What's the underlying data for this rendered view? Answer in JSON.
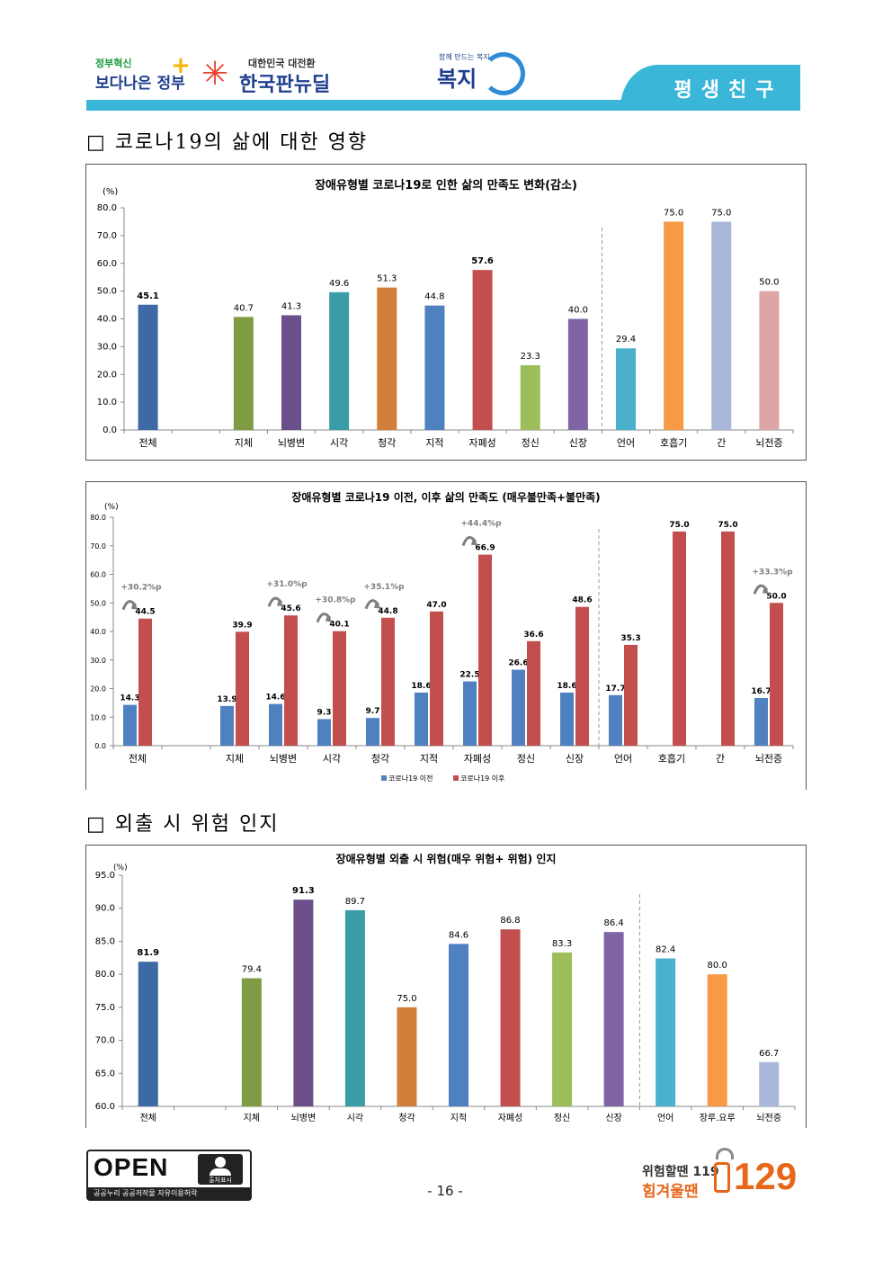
{
  "header": {
    "gov_logo_small": "정부혁신",
    "gov_logo_big": "보다나은 정부",
    "newdeal_small": "대한민국 대전환",
    "newdeal_big": "한국판뉴딜",
    "bokji_small": "함께 만드는 복지",
    "bokji_big": "복지",
    "tab_label": "평생친구"
  },
  "sections": [
    {
      "title": "□ 코로나19의 삶에 대한 영향"
    },
    {
      "title": "□ 외출 시 위험 인지"
    }
  ],
  "chart_data": [
    {
      "type": "bar",
      "title": "장애유형별 코로나19로 인한 삶의 만족도 변화(감소)",
      "ylabel": "(%)",
      "ylim": [
        0,
        80
      ],
      "ytick_step": 10,
      "yticks": [
        "0.0",
        "10.0",
        "20.0",
        "30.0",
        "40.0",
        "50.0",
        "60.0",
        "70.0",
        "80.0"
      ],
      "categories": [
        "전체",
        "",
        "지체",
        "뇌병변",
        "시각",
        "청각",
        "지적",
        "자폐성",
        "정신",
        "신장",
        "언어",
        "호흡기",
        "간",
        "뇌전증"
      ],
      "values": [
        45.1,
        null,
        40.7,
        41.3,
        49.6,
        51.3,
        44.8,
        57.6,
        23.3,
        40.0,
        29.4,
        75.0,
        75.0,
        50.0
      ],
      "labels": [
        "45.1",
        "",
        "40.7",
        "41.3",
        "49.6",
        "51.3",
        "44.8",
        "57.6",
        "23.3",
        "40.0",
        "29.4",
        "75.0",
        "75.0",
        "50.0"
      ],
      "colors": [
        "#3d6aa4",
        "",
        "#7f9c44",
        "#6a4f8a",
        "#3a9ca9",
        "#d07e38",
        "#4f80c0",
        "#c24e4d",
        "#9dbd5a",
        "#8065a5",
        "#4ab0cb",
        "#f79a45",
        "#a9b8d9",
        "#dda5a6"
      ],
      "bold_labels": [
        0,
        7
      ],
      "divider_after": 9,
      "grid": false
    },
    {
      "type": "bar",
      "title": "장애유형별 코로나19 이전, 이후 삶의 만족도 (매우불만족+불만족)",
      "ylabel": "(%)",
      "ylim": [
        0,
        80
      ],
      "ytick_step": 10,
      "yticks": [
        "0.0",
        "10.0",
        "20.0",
        "30.0",
        "40.0",
        "50.0",
        "60.0",
        "70.0",
        "80.0"
      ],
      "categories": [
        "전체",
        "",
        "지체",
        "뇌병변",
        "시각",
        "청각",
        "지적",
        "자폐성",
        "정신",
        "신장",
        "언어",
        "호흡기",
        "간",
        "뇌전증"
      ],
      "series": [
        {
          "name": "코로나19 이전",
          "color": "#4f80c0",
          "values": [
            14.3,
            null,
            13.9,
            14.6,
            9.3,
            9.7,
            18.6,
            22.5,
            26.6,
            18.6,
            17.7,
            null,
            null,
            16.7
          ],
          "labels": [
            "14.3",
            "",
            "13.9",
            "14.6",
            "9.3",
            "9.7",
            "18.6",
            "22.5",
            "26.6",
            "18.6",
            "17.7",
            "",
            "",
            "16.7"
          ]
        },
        {
          "name": "코로나19 이후",
          "color": "#c24e4d",
          "values": [
            44.5,
            null,
            39.9,
            45.6,
            40.1,
            44.8,
            47.0,
            66.9,
            36.6,
            48.6,
            35.3,
            75.0,
            75.0,
            50.0
          ],
          "labels": [
            "44.5",
            "",
            "39.9",
            "45.6",
            "40.1",
            "44.8",
            "47.0",
            "66.9",
            "36.6",
            "48.6",
            "35.3",
            "75.0",
            "75.0",
            "50.0"
          ]
        }
      ],
      "annotations": [
        {
          "index": 0,
          "text": "+30.2%p"
        },
        {
          "index": 3,
          "text": "+31.0%p"
        },
        {
          "index": 4,
          "text": "+30.8%p"
        },
        {
          "index": 5,
          "text": "+35.1%p"
        },
        {
          "index": 7,
          "text": "+44.4%p"
        },
        {
          "index": 13,
          "text": "+33.3%p"
        }
      ],
      "legend": "bottom",
      "divider_after": 9,
      "grid": false
    },
    {
      "type": "bar",
      "title": "장애유형별 외출 시 위험(매우 위험+ 위험) 인지",
      "ylabel": "(%)",
      "ylim": [
        60,
        95
      ],
      "ytick_step": 5,
      "yticks": [
        "60.0",
        "65.0",
        "70.0",
        "75.0",
        "80.0",
        "85.0",
        "90.0",
        "95.0"
      ],
      "categories": [
        "전체",
        "",
        "지체",
        "뇌병변",
        "시각",
        "청각",
        "지적",
        "자폐성",
        "정신",
        "신장",
        "언어",
        "장루.요루",
        "뇌전증"
      ],
      "values": [
        81.9,
        null,
        79.4,
        91.3,
        89.7,
        75.0,
        84.6,
        86.8,
        83.3,
        86.4,
        82.4,
        80.0,
        66.7
      ],
      "labels": [
        "81.9",
        "",
        "79.4",
        "91.3",
        "89.7",
        "75.0",
        "84.6",
        "86.8",
        "83.3",
        "86.4",
        "82.4",
        "80.0",
        "66.7"
      ],
      "colors": [
        "#3d6aa4",
        "",
        "#7f9c44",
        "#6a4f8a",
        "#3a9ca9",
        "#d07e38",
        "#4f80c0",
        "#c24e4d",
        "#9dbd5a",
        "#8065a5",
        "#4ab0cb",
        "#f79a45",
        "#a9b8d9"
      ],
      "bold_labels": [
        0,
        3
      ],
      "divider_after": 9,
      "grid": false
    }
  ],
  "footer": {
    "open_text": "OPEN",
    "open_person": "출처표시",
    "open_bottom": "공공누리  공공저작물 자유이용허락",
    "page_number": "- 16 -",
    "hotline_line1": "위험할땐 119",
    "hotline_line2": "힘겨울땐",
    "hotline_number": "129"
  }
}
